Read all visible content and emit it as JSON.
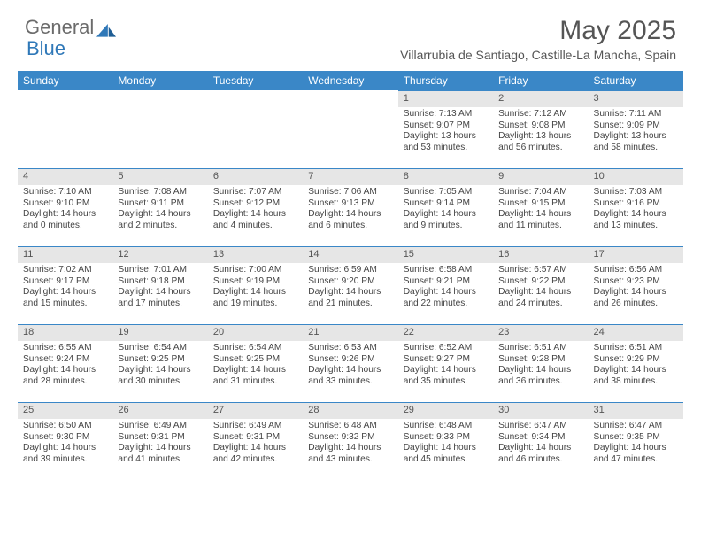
{
  "logo": {
    "text1": "General",
    "text2": "Blue"
  },
  "title": "May 2025",
  "location": "Villarrubia de Santiago, Castille-La Mancha, Spain",
  "colors": {
    "header_bg": "#3a87c7",
    "header_text": "#ffffff",
    "daynum_bg": "#e6e6e6",
    "cell_border": "#3a87c7",
    "body_text": "#444444",
    "logo_gray": "#6b6b6b",
    "logo_blue": "#2f78b8"
  },
  "day_headers": [
    "Sunday",
    "Monday",
    "Tuesday",
    "Wednesday",
    "Thursday",
    "Friday",
    "Saturday"
  ],
  "weeks": [
    [
      null,
      null,
      null,
      null,
      {
        "n": "1",
        "sr": "Sunrise: 7:13 AM",
        "ss": "Sunset: 9:07 PM",
        "dl": "Daylight: 13 hours and 53 minutes."
      },
      {
        "n": "2",
        "sr": "Sunrise: 7:12 AM",
        "ss": "Sunset: 9:08 PM",
        "dl": "Daylight: 13 hours and 56 minutes."
      },
      {
        "n": "3",
        "sr": "Sunrise: 7:11 AM",
        "ss": "Sunset: 9:09 PM",
        "dl": "Daylight: 13 hours and 58 minutes."
      }
    ],
    [
      {
        "n": "4",
        "sr": "Sunrise: 7:10 AM",
        "ss": "Sunset: 9:10 PM",
        "dl": "Daylight: 14 hours and 0 minutes."
      },
      {
        "n": "5",
        "sr": "Sunrise: 7:08 AM",
        "ss": "Sunset: 9:11 PM",
        "dl": "Daylight: 14 hours and 2 minutes."
      },
      {
        "n": "6",
        "sr": "Sunrise: 7:07 AM",
        "ss": "Sunset: 9:12 PM",
        "dl": "Daylight: 14 hours and 4 minutes."
      },
      {
        "n": "7",
        "sr": "Sunrise: 7:06 AM",
        "ss": "Sunset: 9:13 PM",
        "dl": "Daylight: 14 hours and 6 minutes."
      },
      {
        "n": "8",
        "sr": "Sunrise: 7:05 AM",
        "ss": "Sunset: 9:14 PM",
        "dl": "Daylight: 14 hours and 9 minutes."
      },
      {
        "n": "9",
        "sr": "Sunrise: 7:04 AM",
        "ss": "Sunset: 9:15 PM",
        "dl": "Daylight: 14 hours and 11 minutes."
      },
      {
        "n": "10",
        "sr": "Sunrise: 7:03 AM",
        "ss": "Sunset: 9:16 PM",
        "dl": "Daylight: 14 hours and 13 minutes."
      }
    ],
    [
      {
        "n": "11",
        "sr": "Sunrise: 7:02 AM",
        "ss": "Sunset: 9:17 PM",
        "dl": "Daylight: 14 hours and 15 minutes."
      },
      {
        "n": "12",
        "sr": "Sunrise: 7:01 AM",
        "ss": "Sunset: 9:18 PM",
        "dl": "Daylight: 14 hours and 17 minutes."
      },
      {
        "n": "13",
        "sr": "Sunrise: 7:00 AM",
        "ss": "Sunset: 9:19 PM",
        "dl": "Daylight: 14 hours and 19 minutes."
      },
      {
        "n": "14",
        "sr": "Sunrise: 6:59 AM",
        "ss": "Sunset: 9:20 PM",
        "dl": "Daylight: 14 hours and 21 minutes."
      },
      {
        "n": "15",
        "sr": "Sunrise: 6:58 AM",
        "ss": "Sunset: 9:21 PM",
        "dl": "Daylight: 14 hours and 22 minutes."
      },
      {
        "n": "16",
        "sr": "Sunrise: 6:57 AM",
        "ss": "Sunset: 9:22 PM",
        "dl": "Daylight: 14 hours and 24 minutes."
      },
      {
        "n": "17",
        "sr": "Sunrise: 6:56 AM",
        "ss": "Sunset: 9:23 PM",
        "dl": "Daylight: 14 hours and 26 minutes."
      }
    ],
    [
      {
        "n": "18",
        "sr": "Sunrise: 6:55 AM",
        "ss": "Sunset: 9:24 PM",
        "dl": "Daylight: 14 hours and 28 minutes."
      },
      {
        "n": "19",
        "sr": "Sunrise: 6:54 AM",
        "ss": "Sunset: 9:25 PM",
        "dl": "Daylight: 14 hours and 30 minutes."
      },
      {
        "n": "20",
        "sr": "Sunrise: 6:54 AM",
        "ss": "Sunset: 9:25 PM",
        "dl": "Daylight: 14 hours and 31 minutes."
      },
      {
        "n": "21",
        "sr": "Sunrise: 6:53 AM",
        "ss": "Sunset: 9:26 PM",
        "dl": "Daylight: 14 hours and 33 minutes."
      },
      {
        "n": "22",
        "sr": "Sunrise: 6:52 AM",
        "ss": "Sunset: 9:27 PM",
        "dl": "Daylight: 14 hours and 35 minutes."
      },
      {
        "n": "23",
        "sr": "Sunrise: 6:51 AM",
        "ss": "Sunset: 9:28 PM",
        "dl": "Daylight: 14 hours and 36 minutes."
      },
      {
        "n": "24",
        "sr": "Sunrise: 6:51 AM",
        "ss": "Sunset: 9:29 PM",
        "dl": "Daylight: 14 hours and 38 minutes."
      }
    ],
    [
      {
        "n": "25",
        "sr": "Sunrise: 6:50 AM",
        "ss": "Sunset: 9:30 PM",
        "dl": "Daylight: 14 hours and 39 minutes."
      },
      {
        "n": "26",
        "sr": "Sunrise: 6:49 AM",
        "ss": "Sunset: 9:31 PM",
        "dl": "Daylight: 14 hours and 41 minutes."
      },
      {
        "n": "27",
        "sr": "Sunrise: 6:49 AM",
        "ss": "Sunset: 9:31 PM",
        "dl": "Daylight: 14 hours and 42 minutes."
      },
      {
        "n": "28",
        "sr": "Sunrise: 6:48 AM",
        "ss": "Sunset: 9:32 PM",
        "dl": "Daylight: 14 hours and 43 minutes."
      },
      {
        "n": "29",
        "sr": "Sunrise: 6:48 AM",
        "ss": "Sunset: 9:33 PM",
        "dl": "Daylight: 14 hours and 45 minutes."
      },
      {
        "n": "30",
        "sr": "Sunrise: 6:47 AM",
        "ss": "Sunset: 9:34 PM",
        "dl": "Daylight: 14 hours and 46 minutes."
      },
      {
        "n": "31",
        "sr": "Sunrise: 6:47 AM",
        "ss": "Sunset: 9:35 PM",
        "dl": "Daylight: 14 hours and 47 minutes."
      }
    ]
  ]
}
